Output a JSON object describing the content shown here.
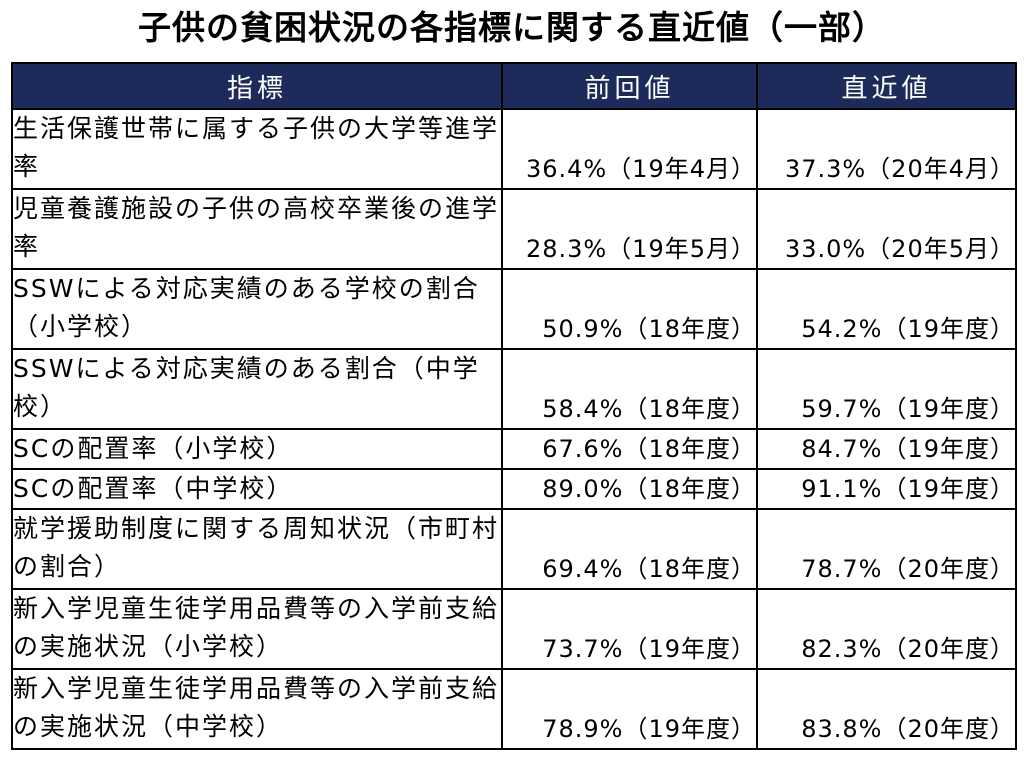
{
  "title": "子供の貧困状況の各指標に関する直近値（一部）",
  "table": {
    "headers": [
      "指標",
      "前回値",
      "直近値"
    ],
    "rows": [
      {
        "indicator": "生活保護世帯に属する子供の大学等進学率",
        "previous": "36.4%（19年4月）",
        "latest": "37.3%（20年4月）"
      },
      {
        "indicator": "児童養護施設の子供の高校卒業後の進学率",
        "previous": "28.3%（19年5月）",
        "latest": "33.0%（20年5月）"
      },
      {
        "indicator": "SSWによる対応実績のある学校の割合（小学校）",
        "previous": "50.9%（18年度）",
        "latest": "54.2%（19年度）"
      },
      {
        "indicator": "SSWによる対応実績のある割合（中学校）",
        "previous": "58.4%（18年度）",
        "latest": "59.7%（19年度）"
      },
      {
        "indicator": "SCの配置率（小学校）",
        "previous": "67.6%（18年度）",
        "latest": "84.7%（19年度）"
      },
      {
        "indicator": "SCの配置率（中学校）",
        "previous": "89.0%（18年度）",
        "latest": "91.1%（19年度）"
      },
      {
        "indicator": "就学援助制度に関する周知状況（市町村の割合）",
        "previous": "69.4%（18年度）",
        "latest": "78.7%（20年度）"
      },
      {
        "indicator": "新入学児童生徒学用品費等の入学前支給の実施状況（小学校）",
        "previous": "73.7%（19年度）",
        "latest": "82.3%（20年度）"
      },
      {
        "indicator": "新入学児童生徒学用品費等の入学前支給の実施状況（中学校）",
        "previous": "78.9%（19年度）",
        "latest": "83.8%（20年度）"
      }
    ]
  }
}
